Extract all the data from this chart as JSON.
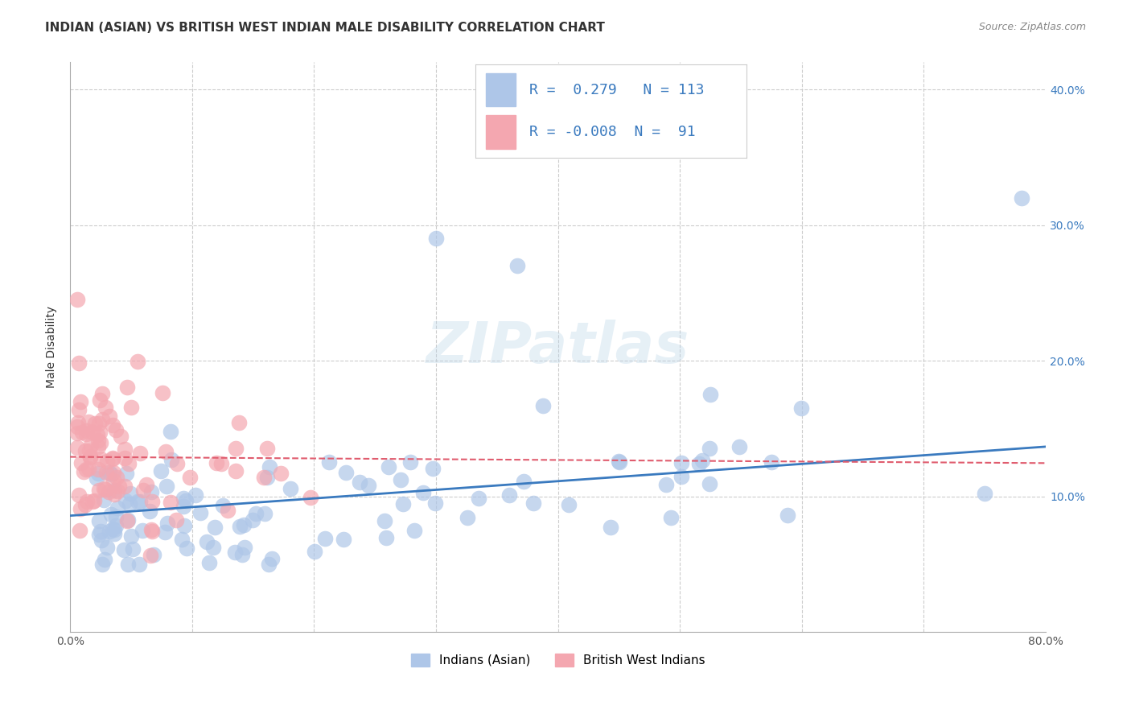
{
  "title": "INDIAN (ASIAN) VS BRITISH WEST INDIAN MALE DISABILITY CORRELATION CHART",
  "source": "Source: ZipAtlas.com",
  "xlabel": "",
  "ylabel": "Male Disability",
  "xlim": [
    0.0,
    0.8
  ],
  "ylim": [
    0.0,
    0.42
  ],
  "grid_color": "#cccccc",
  "background_color": "#ffffff",
  "legend_R1": "0.279",
  "legend_N1": "113",
  "legend_R2": "-0.008",
  "legend_N2": "91",
  "color_blue": "#aec6e8",
  "color_pink": "#f4a7b0",
  "line_blue": "#3a7abf",
  "line_pink": "#e05c6e",
  "watermark": "ZIPatlas",
  "label1": "Indians (Asian)",
  "label2": "British West Indians",
  "title_fontsize": 11,
  "axis_label_fontsize": 10,
  "tick_fontsize": 10,
  "legend_fontsize": 12
}
